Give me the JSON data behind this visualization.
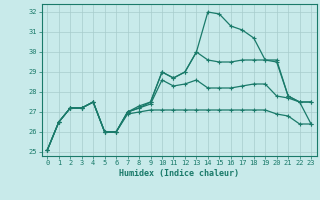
{
  "title": "",
  "xlabel": "Humidex (Indice chaleur)",
  "xlim": [
    -0.5,
    23.5
  ],
  "ylim": [
    24.8,
    32.4
  ],
  "bg_color": "#c8eaea",
  "line_color": "#1a7a6a",
  "grid_color": "#a8cccc",
  "xticks": [
    0,
    1,
    2,
    3,
    4,
    5,
    6,
    7,
    8,
    9,
    10,
    11,
    12,
    13,
    14,
    15,
    16,
    17,
    18,
    19,
    20,
    21,
    22,
    23
  ],
  "yticks": [
    25,
    26,
    27,
    28,
    29,
    30,
    31,
    32
  ],
  "line1": [
    25.1,
    26.5,
    27.2,
    27.2,
    27.5,
    26.0,
    26.0,
    26.9,
    27.0,
    27.1,
    27.1,
    27.1,
    27.1,
    27.1,
    27.1,
    27.1,
    27.1,
    27.1,
    27.1,
    27.1,
    26.9,
    26.8,
    26.4,
    26.4
  ],
  "line2": [
    25.1,
    26.5,
    27.2,
    27.2,
    27.5,
    26.0,
    26.0,
    27.0,
    27.2,
    27.4,
    28.6,
    28.3,
    28.4,
    28.6,
    28.2,
    28.2,
    28.2,
    28.3,
    28.4,
    28.4,
    27.8,
    27.7,
    27.5,
    26.4
  ],
  "line3": [
    25.1,
    26.5,
    27.2,
    27.2,
    27.5,
    26.0,
    26.0,
    27.0,
    27.2,
    27.5,
    29.0,
    28.7,
    29.0,
    30.0,
    29.6,
    29.5,
    29.5,
    29.6,
    29.6,
    29.6,
    29.5,
    27.8,
    27.5,
    27.5
  ],
  "line4": [
    25.1,
    26.5,
    27.2,
    27.2,
    27.5,
    26.0,
    26.0,
    27.0,
    27.3,
    27.5,
    29.0,
    28.7,
    29.0,
    30.0,
    32.0,
    31.9,
    31.3,
    31.1,
    30.7,
    29.6,
    29.6,
    27.8,
    27.5,
    27.5
  ]
}
